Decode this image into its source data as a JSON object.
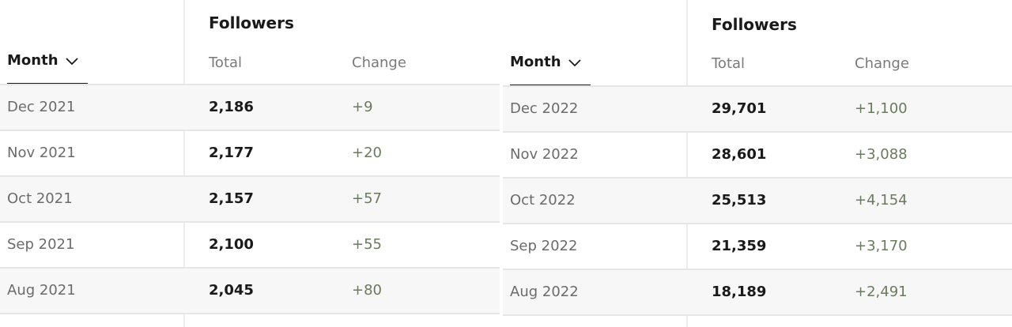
{
  "left": {
    "group_header": "Followers",
    "sort_label": "Month",
    "col_total": "Total",
    "col_change": "Change",
    "rows": [
      {
        "month": "Dec 2021",
        "total": "2,186",
        "change": "+9"
      },
      {
        "month": "Nov 2021",
        "total": "2,177",
        "change": "+20"
      },
      {
        "month": "Oct 2021",
        "total": "2,157",
        "change": "+57"
      },
      {
        "month": "Sep 2021",
        "total": "2,100",
        "change": "+55"
      },
      {
        "month": "Aug 2021",
        "total": "2,045",
        "change": "+80"
      }
    ]
  },
  "right": {
    "group_header": "Followers",
    "sort_label": "Month",
    "col_total": "Total",
    "col_change": "Change",
    "rows": [
      {
        "month": "Dec 2022",
        "total": "29,701",
        "change": "+1,100"
      },
      {
        "month": "Nov 2022",
        "total": "28,601",
        "change": "+3,088"
      },
      {
        "month": "Oct 2022",
        "total": "25,513",
        "change": "+4,154"
      },
      {
        "month": "Sep 2022",
        "total": "21,359",
        "change": "+3,170"
      },
      {
        "month": "Aug 2022",
        "total": "18,189",
        "change": "+2,491"
      }
    ]
  },
  "icons": {
    "sort": "chevron-down-icon"
  },
  "colors": {
    "change_text": "#6a7a5e",
    "row_shade": "#f7f7f7",
    "divider": "#e6e6e6"
  }
}
